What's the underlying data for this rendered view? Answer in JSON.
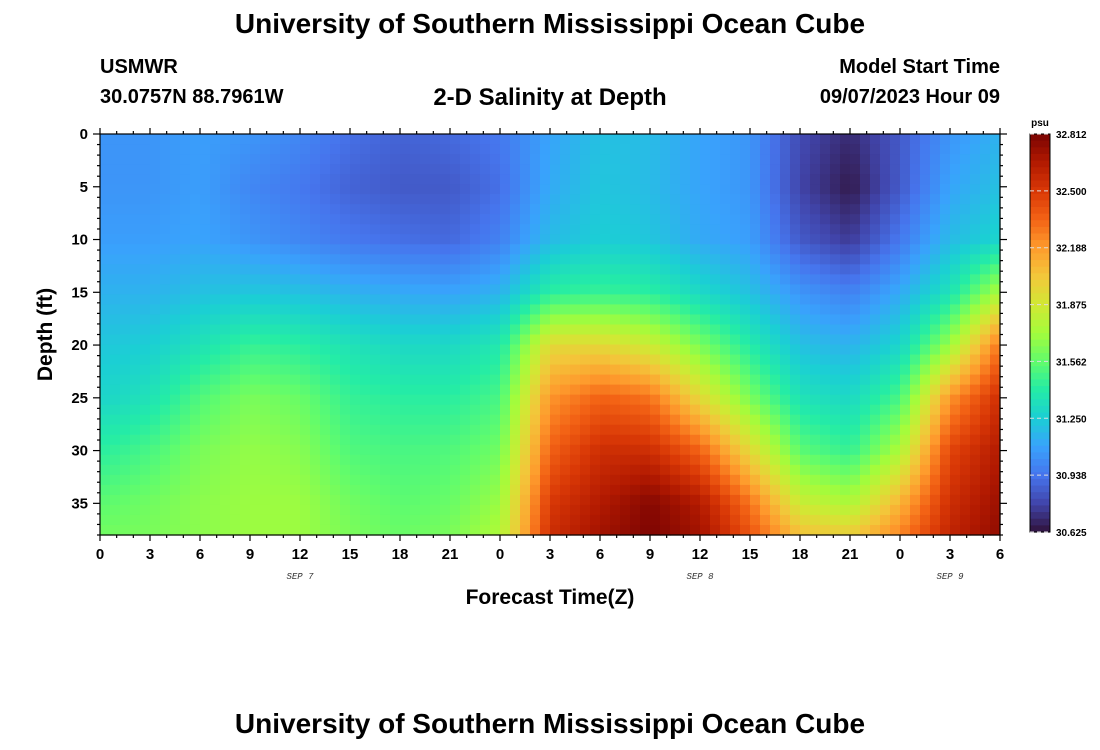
{
  "header": {
    "title": "University of Southern Mississippi Ocean Cube",
    "station": "USMWR",
    "coords": "30.0757N  88.7961W",
    "subtitle": "2-D Salinity at Depth",
    "start_label": "Model Start Time",
    "start_value": "09/07/2023 Hour 09"
  },
  "footer": {
    "title": "University of Southern Mississippi Ocean Cube"
  },
  "chart_data": {
    "type": "heatmap",
    "title": "2-D Salinity at Depth",
    "xlabel": "Forecast Time(Z)",
    "ylabel": "Depth (ft)",
    "x_tick_labels": [
      "0",
      "3",
      "6",
      "9",
      "12",
      "15",
      "18",
      "21",
      "0",
      "3",
      "6",
      "9",
      "12",
      "15",
      "18",
      "21",
      "0",
      "3",
      "6"
    ],
    "x_range_hours": [
      0,
      54
    ],
    "day_labels": [
      {
        "text": "SEP 7",
        "hour": 12
      },
      {
        "text": "SEP 8",
        "hour": 36
      },
      {
        "text": "SEP 9",
        "hour": 51
      }
    ],
    "y_tick_labels": [
      "0",
      "5",
      "10",
      "15",
      "20",
      "25",
      "30",
      "35"
    ],
    "y_range": [
      0,
      38
    ],
    "y_inverted": true,
    "colorbar": {
      "unit": "psu",
      "min": 30.625,
      "max": 32.812,
      "labels": [
        "32.812",
        "32.500",
        "32.188",
        "31.875",
        "31.562",
        "31.250",
        "30.938",
        "30.625"
      ],
      "colormap": [
        "#30123b",
        "#4145ab",
        "#4675ed",
        "#39a2fc",
        "#1bcfd4",
        "#24eca6",
        "#61fc6c",
        "#a4fc3b",
        "#d1e834",
        "#f3c63a",
        "#fe9b2d",
        "#f36315",
        "#d93806",
        "#b11901",
        "#7a0402"
      ]
    },
    "salinity_profiles_psu": {
      "depths_ft": [
        0,
        5,
        10,
        15,
        20,
        25,
        30,
        35,
        38
      ],
      "profiles": [
        {
          "hour": 0,
          "values": [
            31.05,
            31.05,
            31.08,
            31.15,
            31.22,
            31.28,
            31.42,
            31.55,
            31.6
          ]
        },
        {
          "hour": 3,
          "values": [
            31.05,
            31.05,
            31.08,
            31.15,
            31.25,
            31.35,
            31.5,
            31.6,
            31.62
          ]
        },
        {
          "hour": 6,
          "values": [
            31.08,
            31.08,
            31.1,
            31.2,
            31.35,
            31.52,
            31.62,
            31.66,
            31.66
          ]
        },
        {
          "hour": 9,
          "values": [
            31.05,
            31.0,
            31.05,
            31.22,
            31.45,
            31.62,
            31.68,
            31.7,
            31.7
          ]
        },
        {
          "hour": 12,
          "values": [
            31.0,
            30.95,
            31.0,
            31.2,
            31.42,
            31.58,
            31.65,
            31.7,
            31.7
          ]
        },
        {
          "hour": 15,
          "values": [
            30.92,
            30.88,
            30.95,
            31.15,
            31.35,
            31.45,
            31.52,
            31.6,
            31.62
          ]
        },
        {
          "hour": 18,
          "values": [
            30.88,
            30.85,
            30.92,
            31.12,
            31.3,
            31.42,
            31.5,
            31.55,
            31.58
          ]
        },
        {
          "hour": 21,
          "values": [
            30.9,
            30.85,
            30.9,
            31.1,
            31.3,
            31.42,
            31.52,
            31.58,
            31.62
          ]
        },
        {
          "hour": 24,
          "values": [
            30.95,
            30.92,
            30.98,
            31.15,
            31.38,
            31.5,
            31.6,
            31.7,
            31.75
          ]
        },
        {
          "hour": 27,
          "values": [
            31.1,
            31.12,
            31.18,
            31.42,
            31.95,
            32.2,
            32.35,
            32.5,
            32.55
          ]
        },
        {
          "hour": 30,
          "values": [
            31.2,
            31.22,
            31.25,
            31.45,
            31.95,
            32.35,
            32.55,
            32.65,
            32.7
          ]
        },
        {
          "hour": 33,
          "values": [
            31.18,
            31.18,
            31.22,
            31.42,
            31.85,
            32.3,
            32.55,
            32.78,
            32.8
          ]
        },
        {
          "hour": 36,
          "values": [
            31.1,
            31.1,
            31.12,
            31.3,
            31.62,
            31.95,
            32.35,
            32.65,
            32.7
          ]
        },
        {
          "hour": 39,
          "values": [
            31.05,
            31.05,
            31.08,
            31.2,
            31.4,
            31.62,
            31.95,
            32.3,
            32.4
          ]
        },
        {
          "hour": 42,
          "values": [
            30.8,
            30.78,
            30.85,
            31.05,
            31.2,
            31.35,
            31.55,
            31.85,
            32.05
          ]
        },
        {
          "hour": 45,
          "values": [
            30.7,
            30.65,
            30.75,
            30.98,
            31.15,
            31.3,
            31.45,
            31.75,
            32.0
          ]
        },
        {
          "hour": 48,
          "values": [
            30.85,
            30.85,
            30.95,
            31.12,
            31.28,
            31.5,
            31.75,
            32.1,
            32.25
          ]
        },
        {
          "hour": 51,
          "values": [
            31.05,
            31.1,
            31.18,
            31.35,
            31.7,
            32.2,
            32.45,
            32.55,
            32.6
          ]
        },
        {
          "hour": 54,
          "values": [
            31.15,
            31.2,
            31.28,
            31.75,
            32.3,
            32.55,
            32.65,
            32.72,
            32.75
          ]
        }
      ]
    }
  }
}
